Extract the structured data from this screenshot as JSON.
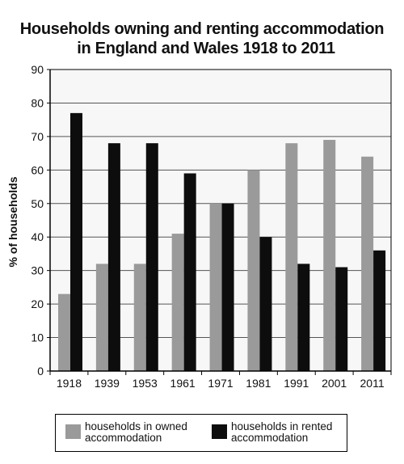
{
  "title_line1": "Households owning and renting accommodation",
  "title_line2": "in England and Wales 1918 to 2011",
  "chart_data": {
    "type": "bar",
    "title": "Households owning and renting accommodation in England and Wales 1918 to 2011",
    "xlabel": "",
    "ylabel": "% of households",
    "categories": [
      "1918",
      "1939",
      "1953",
      "1961",
      "1971",
      "1981",
      "1991",
      "2001",
      "2011"
    ],
    "series": [
      {
        "name": "households in owned accommodation",
        "color": "#9a9a9a",
        "values": [
          23,
          32,
          32,
          41,
          50,
          60,
          68,
          69,
          64
        ]
      },
      {
        "name": "households in rented accommodation",
        "color": "#0d0d0d",
        "values": [
          77,
          68,
          68,
          59,
          50,
          40,
          32,
          31,
          36
        ]
      }
    ],
    "ylim": [
      0,
      90
    ],
    "yticks": [
      0,
      10,
      20,
      30,
      40,
      50,
      60,
      70,
      80,
      90
    ],
    "grid": true,
    "legend_position": "bottom"
  }
}
